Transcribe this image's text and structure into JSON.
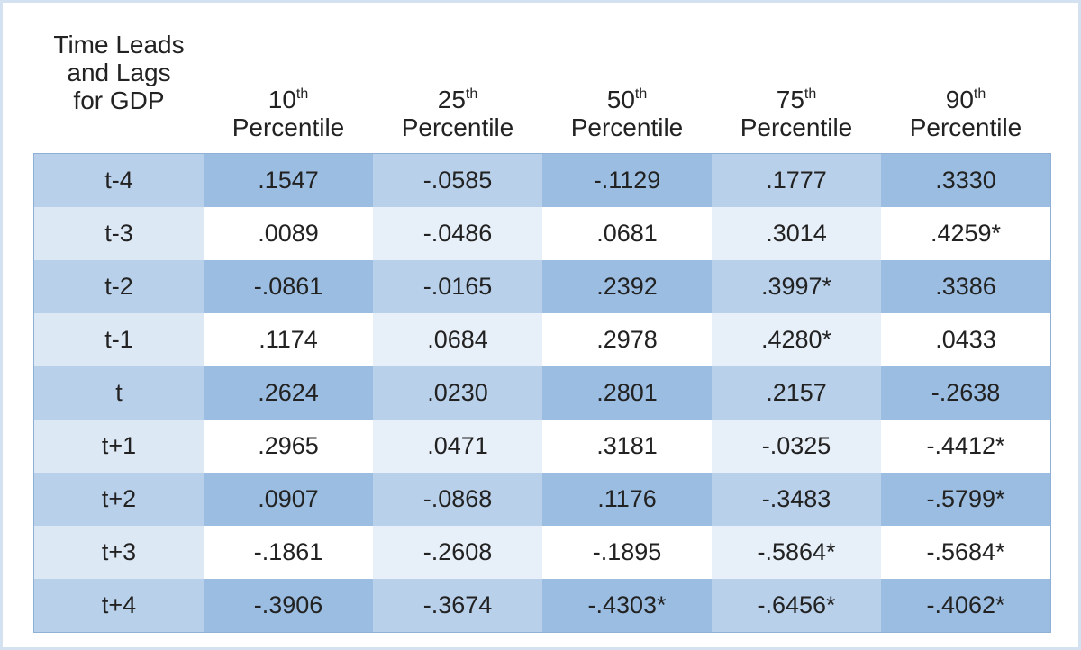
{
  "header": {
    "stub": [
      "Time Leads",
      "and Lags",
      "for GDP"
    ],
    "columns": [
      {
        "number": "10",
        "suffix": "th",
        "label": "Percentile"
      },
      {
        "number": "25",
        "suffix": "th",
        "label": "Percentile"
      },
      {
        "number": "50",
        "suffix": "th",
        "label": "Percentile"
      },
      {
        "number": "75",
        "suffix": "th",
        "label": "Percentile"
      },
      {
        "number": "90",
        "suffix": "th",
        "label": "Percentile"
      }
    ]
  },
  "table": {
    "rows": [
      [
        "t-4",
        ".1547",
        "-.0585",
        "-.1129",
        ".1777",
        ".3330"
      ],
      [
        "t-3",
        ".0089",
        "-.0486",
        ".0681",
        ".3014",
        ".4259*"
      ],
      [
        "t-2",
        "-.0861",
        "-.0165",
        ".2392",
        ".3997*",
        ".3386"
      ],
      [
        "t-1",
        ".1174",
        ".0684",
        ".2978",
        ".4280*",
        ".0433"
      ],
      [
        "t",
        ".2624",
        ".0230",
        ".2801",
        ".2157",
        "-.2638"
      ],
      [
        "t+1",
        ".2965",
        ".0471",
        ".3181",
        "-.0325",
        "-.4412*"
      ],
      [
        "t+2",
        ".0907",
        "-.0868",
        ".1176",
        "-.3483",
        "-.5799*"
      ],
      [
        "t+3",
        "-.1861",
        "-.2608",
        "-.1895",
        "-.5864*",
        "-.5684*"
      ],
      [
        "t+4",
        "-.3906",
        "-.3674",
        "-.4303*",
        "-.6456*",
        "-.4062*"
      ]
    ]
  }
}
